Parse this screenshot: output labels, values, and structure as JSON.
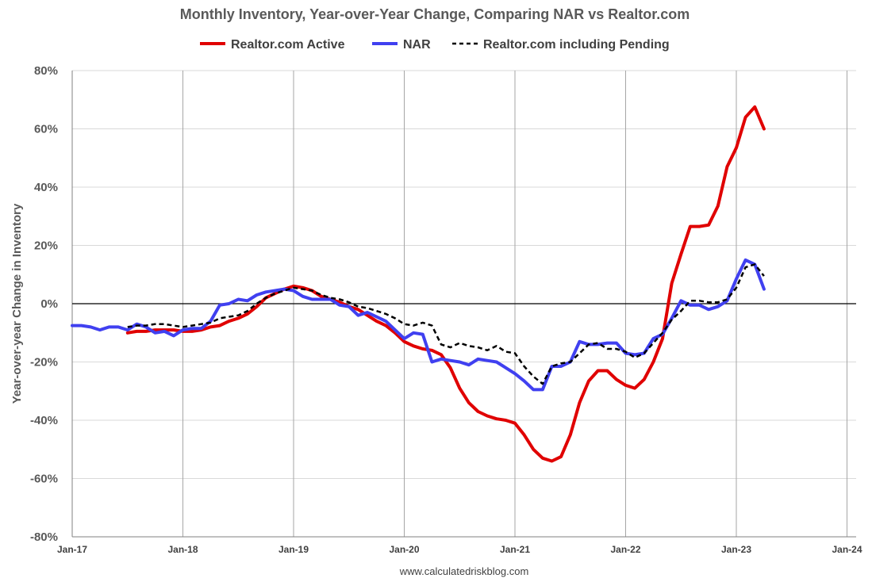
{
  "chart_data": {
    "type": "line",
    "title": "Monthly Inventory, Year-over-Year Change, Comparing NAR vs Realtor.com",
    "xlabel": "",
    "ylabel": "Year-over-year Change in Inventory",
    "footer": "www.calculatedriskblog.com",
    "x_ticks": [
      "Jan-17",
      "Jan-18",
      "Jan-19",
      "Jan-20",
      "Jan-21",
      "Jan-22",
      "Jan-23",
      "Jan-24"
    ],
    "y_ticks": [
      "80%",
      "60%",
      "40%",
      "20%",
      "0%",
      "-20%",
      "-40%",
      "-60%",
      "-80%"
    ],
    "xlim": [
      "2017-01",
      "2024-01"
    ],
    "ylim": [
      -80,
      80
    ],
    "grid": true,
    "legend_position": "top",
    "series": [
      {
        "name": "Realtor.com Active",
        "color": "#e00000",
        "style": "solid",
        "points": [
          [
            "2017-07",
            -10
          ],
          [
            "2017-08",
            -9.5
          ],
          [
            "2017-09",
            -9.5
          ],
          [
            "2017-10",
            -9
          ],
          [
            "2017-11",
            -9
          ],
          [
            "2017-12",
            -9
          ],
          [
            "2018-01",
            -9.5
          ],
          [
            "2018-02",
            -9.5
          ],
          [
            "2018-03",
            -9
          ],
          [
            "2018-04",
            -8
          ],
          [
            "2018-05",
            -7.5
          ],
          [
            "2018-06",
            -6
          ],
          [
            "2018-07",
            -5
          ],
          [
            "2018-08",
            -3.5
          ],
          [
            "2018-09",
            -1
          ],
          [
            "2018-10",
            2
          ],
          [
            "2018-11",
            3.5
          ],
          [
            "2018-12",
            5
          ],
          [
            "2019-01",
            6
          ],
          [
            "2019-02",
            5.5
          ],
          [
            "2019-03",
            4.5
          ],
          [
            "2019-04",
            2.5
          ],
          [
            "2019-05",
            1.5
          ],
          [
            "2019-06",
            0.5
          ],
          [
            "2019-07",
            -1
          ],
          [
            "2019-08",
            -2
          ],
          [
            "2019-09",
            -4
          ],
          [
            "2019-10",
            -6
          ],
          [
            "2019-11",
            -7.5
          ],
          [
            "2019-12",
            -10
          ],
          [
            "2020-01",
            -13
          ],
          [
            "2020-02",
            -14.5
          ],
          [
            "2020-03",
            -15.5
          ],
          [
            "2020-04",
            -16
          ],
          [
            "2020-05",
            -17.5
          ],
          [
            "2020-06",
            -22
          ],
          [
            "2020-07",
            -29
          ],
          [
            "2020-08",
            -34
          ],
          [
            "2020-09",
            -37
          ],
          [
            "2020-10",
            -38.5
          ],
          [
            "2020-11",
            -39.5
          ],
          [
            "2020-12",
            -40
          ],
          [
            "2021-01",
            -41
          ],
          [
            "2021-02",
            -45
          ],
          [
            "2021-03",
            -50
          ],
          [
            "2021-04",
            -53
          ],
          [
            "2021-05",
            -54
          ],
          [
            "2021-06",
            -52.5
          ],
          [
            "2021-07",
            -45
          ],
          [
            "2021-08",
            -34
          ],
          [
            "2021-09",
            -26.5
          ],
          [
            "2021-10",
            -23
          ],
          [
            "2021-11",
            -23
          ],
          [
            "2021-12",
            -26
          ],
          [
            "2022-01",
            -28
          ],
          [
            "2022-02",
            -29
          ],
          [
            "2022-03",
            -26
          ],
          [
            "2022-04",
            -20
          ],
          [
            "2022-05",
            -12
          ],
          [
            "2022-06",
            7
          ],
          [
            "2022-07",
            17
          ],
          [
            "2022-08",
            26.5
          ],
          [
            "2022-09",
            26.5
          ],
          [
            "2022-10",
            27
          ],
          [
            "2022-11",
            33.5
          ],
          [
            "2022-12",
            47
          ],
          [
            "2023-01",
            53.5
          ],
          [
            "2023-02",
            64
          ],
          [
            "2023-03",
            67.5
          ],
          [
            "2023-04",
            60
          ]
        ]
      },
      {
        "name": "NAR",
        "color": "#4040f0",
        "style": "solid",
        "points": [
          [
            "2017-01",
            -7.5
          ],
          [
            "2017-02",
            -7.5
          ],
          [
            "2017-03",
            -8
          ],
          [
            "2017-04",
            -9
          ],
          [
            "2017-05",
            -8
          ],
          [
            "2017-06",
            -8
          ],
          [
            "2017-07",
            -9
          ],
          [
            "2017-08",
            -7
          ],
          [
            "2017-09",
            -8
          ],
          [
            "2017-10",
            -10
          ],
          [
            "2017-11",
            -9.5
          ],
          [
            "2017-12",
            -11
          ],
          [
            "2018-01",
            -9
          ],
          [
            "2018-02",
            -8.5
          ],
          [
            "2018-03",
            -8.5
          ],
          [
            "2018-04",
            -6
          ],
          [
            "2018-05",
            -0.5
          ],
          [
            "2018-06",
            0
          ],
          [
            "2018-07",
            1.5
          ],
          [
            "2018-08",
            1
          ],
          [
            "2018-09",
            3
          ],
          [
            "2018-10",
            4
          ],
          [
            "2018-11",
            4.5
          ],
          [
            "2018-12",
            5
          ],
          [
            "2019-01",
            4.5
          ],
          [
            "2019-02",
            2.5
          ],
          [
            "2019-03",
            1.5
          ],
          [
            "2019-04",
            1.5
          ],
          [
            "2019-05",
            1.5
          ],
          [
            "2019-06",
            -0.5
          ],
          [
            "2019-07",
            -1
          ],
          [
            "2019-08",
            -4
          ],
          [
            "2019-09",
            -3
          ],
          [
            "2019-10",
            -4.5
          ],
          [
            "2019-11",
            -6
          ],
          [
            "2019-12",
            -9
          ],
          [
            "2020-01",
            -12
          ],
          [
            "2020-02",
            -10
          ],
          [
            "2020-03",
            -10.5
          ],
          [
            "2020-04",
            -20
          ],
          [
            "2020-05",
            -19
          ],
          [
            "2020-06",
            -19.5
          ],
          [
            "2020-07",
            -20
          ],
          [
            "2020-08",
            -21
          ],
          [
            "2020-09",
            -19
          ],
          [
            "2020-10",
            -19.5
          ],
          [
            "2020-11",
            -20
          ],
          [
            "2020-12",
            -22
          ],
          [
            "2021-01",
            -24
          ],
          [
            "2021-02",
            -26.5
          ],
          [
            "2021-03",
            -29.5
          ],
          [
            "2021-04",
            -29.5
          ],
          [
            "2021-05",
            -21.5
          ],
          [
            "2021-06",
            -21.5
          ],
          [
            "2021-07",
            -20
          ],
          [
            "2021-08",
            -13
          ],
          [
            "2021-09",
            -14
          ],
          [
            "2021-10",
            -14
          ],
          [
            "2021-11",
            -13.5
          ],
          [
            "2021-12",
            -13.5
          ],
          [
            "2022-01",
            -17
          ],
          [
            "2022-02",
            -17.5
          ],
          [
            "2022-03",
            -17
          ],
          [
            "2022-04",
            -12
          ],
          [
            "2022-05",
            -10.5
          ],
          [
            "2022-06",
            -5
          ],
          [
            "2022-07",
            1
          ],
          [
            "2022-08",
            -0.5
          ],
          [
            "2022-09",
            -0.5
          ],
          [
            "2022-10",
            -2
          ],
          [
            "2022-11",
            -1
          ],
          [
            "2022-12",
            1
          ],
          [
            "2023-01",
            8.5
          ],
          [
            "2023-02",
            15
          ],
          [
            "2023-03",
            13.5
          ],
          [
            "2023-04",
            5
          ]
        ]
      },
      {
        "name": "Realtor.com including Pending",
        "color": "#000000",
        "style": "dashed",
        "points": [
          [
            "2017-07",
            -8
          ],
          [
            "2017-08",
            -7.5
          ],
          [
            "2017-09",
            -7.5
          ],
          [
            "2017-10",
            -7
          ],
          [
            "2017-11",
            -7
          ],
          [
            "2017-12",
            -7.5
          ],
          [
            "2018-01",
            -8
          ],
          [
            "2018-02",
            -7.5
          ],
          [
            "2018-03",
            -7
          ],
          [
            "2018-04",
            -6.5
          ],
          [
            "2018-05",
            -5
          ],
          [
            "2018-06",
            -4.5
          ],
          [
            "2018-07",
            -4
          ],
          [
            "2018-08",
            -2.5
          ],
          [
            "2018-09",
            0
          ],
          [
            "2018-10",
            2
          ],
          [
            "2018-11",
            3.5
          ],
          [
            "2018-12",
            4.5
          ],
          [
            "2019-01",
            5.5
          ],
          [
            "2019-02",
            5
          ],
          [
            "2019-03",
            4.5
          ],
          [
            "2019-04",
            3
          ],
          [
            "2019-05",
            2
          ],
          [
            "2019-06",
            1.5
          ],
          [
            "2019-07",
            0.5
          ],
          [
            "2019-08",
            -1
          ],
          [
            "2019-09",
            -1.5
          ],
          [
            "2019-10",
            -2.5
          ],
          [
            "2019-11",
            -3.5
          ],
          [
            "2019-12",
            -5
          ],
          [
            "2020-01",
            -7
          ],
          [
            "2020-02",
            -7.5
          ],
          [
            "2020-03",
            -6.5
          ],
          [
            "2020-04",
            -7.5
          ],
          [
            "2020-05",
            -14
          ],
          [
            "2020-06",
            -15
          ],
          [
            "2020-07",
            -13.5
          ],
          [
            "2020-08",
            -14.5
          ],
          [
            "2020-09",
            -15
          ],
          [
            "2020-10",
            -16
          ],
          [
            "2020-11",
            -14.5
          ],
          [
            "2020-12",
            -16.5
          ],
          [
            "2021-01",
            -17
          ],
          [
            "2021-02",
            -21.5
          ],
          [
            "2021-03",
            -25
          ],
          [
            "2021-04",
            -27.5
          ],
          [
            "2021-05",
            -21.5
          ],
          [
            "2021-06",
            -20.5
          ],
          [
            "2021-07",
            -20
          ],
          [
            "2021-08",
            -17
          ],
          [
            "2021-09",
            -14
          ],
          [
            "2021-10",
            -13.5
          ],
          [
            "2021-11",
            -15.5
          ],
          [
            "2021-12",
            -15.5
          ],
          [
            "2022-01",
            -16.5
          ],
          [
            "2022-02",
            -18.5
          ],
          [
            "2022-03",
            -17
          ],
          [
            "2022-04",
            -13.5
          ],
          [
            "2022-05",
            -10
          ],
          [
            "2022-06",
            -5.5
          ],
          [
            "2022-07",
            -2.5
          ],
          [
            "2022-08",
            1
          ],
          [
            "2022-09",
            1
          ],
          [
            "2022-10",
            0.5
          ],
          [
            "2022-11",
            0.5
          ],
          [
            "2022-12",
            1.5
          ],
          [
            "2023-01",
            5.5
          ],
          [
            "2023-02",
            12.5
          ],
          [
            "2023-03",
            13.5
          ],
          [
            "2023-04",
            9.5
          ]
        ]
      }
    ]
  }
}
